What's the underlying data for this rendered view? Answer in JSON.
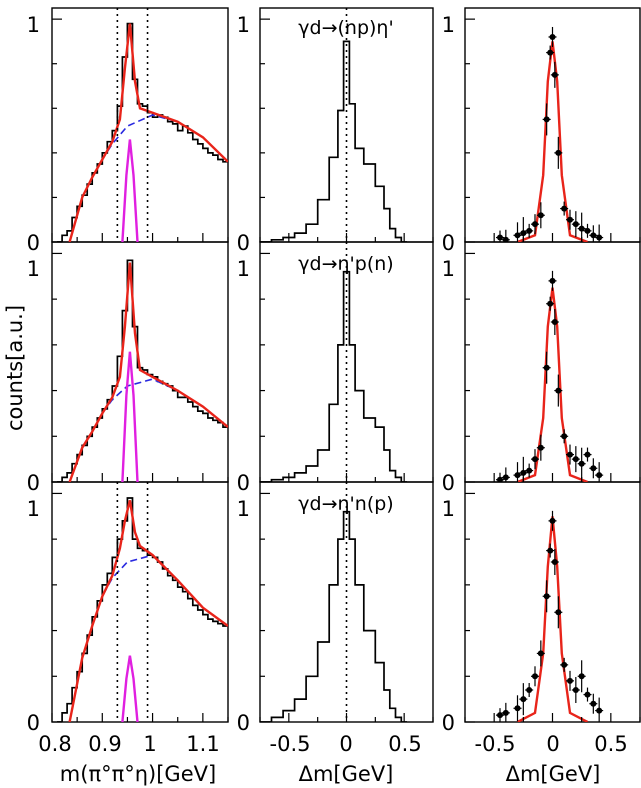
{
  "figure": {
    "ylabel": "counts[a.u.]",
    "col_xlabels": [
      "m(π°π°η)[GeV]",
      "Δm[GeV]",
      "Δm[GeV]"
    ],
    "col_titles": [
      "γd→(np)η'",
      "γd→η'p(n)",
      "γd→η'n(p)"
    ],
    "ytick_labels": [
      "0",
      "1"
    ],
    "xticks_left": [
      "0.8",
      "0.9",
      "1",
      "1.1"
    ],
    "xticks_mid": [
      "-0.5",
      "0",
      "0.5"
    ],
    "xticks_right": [
      "-0.5",
      "0",
      "0.5"
    ],
    "colors": {
      "fit": "#e8241a",
      "signal": "#e020e0",
      "background": "#2a2ae0",
      "histogram": "#000000"
    }
  },
  "chart_data": [
    {
      "row": 0,
      "column": "left",
      "type": "line",
      "xlim": [
        0.8,
        1.15
      ],
      "ylim": [
        0,
        1.05
      ],
      "markers_x": [
        0.93,
        0.99
      ],
      "hist": {
        "x": [
          0.815,
          0.825,
          0.835,
          0.845,
          0.855,
          0.865,
          0.875,
          0.885,
          0.895,
          0.905,
          0.915,
          0.925,
          0.935,
          0.945,
          0.955,
          0.965,
          0.975,
          0.985,
          0.995,
          1.005,
          1.015,
          1.025,
          1.035,
          1.045,
          1.055,
          1.065,
          1.075,
          1.085,
          1.095,
          1.105,
          1.115,
          1.125,
          1.135,
          1.145
        ],
        "y": [
          0.0,
          0.03,
          0.05,
          0.11,
          0.16,
          0.21,
          0.26,
          0.31,
          0.35,
          0.4,
          0.45,
          0.5,
          0.61,
          0.83,
          0.98,
          0.73,
          0.62,
          0.61,
          0.58,
          0.56,
          0.57,
          0.56,
          0.54,
          0.53,
          0.5,
          0.52,
          0.49,
          0.46,
          0.44,
          0.42,
          0.4,
          0.39,
          0.37,
          0.36
        ]
      },
      "fit": {
        "x": [
          0.835,
          0.86,
          0.88,
          0.9,
          0.92,
          0.935,
          0.945,
          0.955,
          0.965,
          0.975,
          1.0,
          1.05,
          1.1,
          1.15
        ],
        "y": [
          0.0,
          0.2,
          0.29,
          0.37,
          0.45,
          0.55,
          0.78,
          0.98,
          0.72,
          0.6,
          0.58,
          0.54,
          0.47,
          0.36
        ]
      },
      "background": {
        "x": [
          0.835,
          0.86,
          0.88,
          0.9,
          0.92,
          0.95,
          1.0,
          1.05,
          1.1,
          1.15
        ],
        "y": [
          0.0,
          0.2,
          0.29,
          0.37,
          0.44,
          0.52,
          0.57,
          0.54,
          0.47,
          0.36
        ]
      },
      "signal": {
        "x": [
          0.94,
          0.948,
          0.955,
          0.962,
          0.97
        ],
        "y": [
          0.0,
          0.3,
          0.46,
          0.3,
          0.0
        ]
      }
    },
    {
      "row": 0,
      "column": "middle",
      "type": "line",
      "xlim": [
        -0.75,
        0.75
      ],
      "ylim": [
        0,
        1.05
      ],
      "marker_x": 0,
      "hist": {
        "x": [
          -0.7,
          -0.6,
          -0.5,
          -0.4,
          -0.3,
          -0.2,
          -0.1,
          -0.05,
          0,
          0.05,
          0.1,
          0.2,
          0.3,
          0.35,
          0.4,
          0.45,
          0.5
        ],
        "y": [
          0.0,
          0.01,
          0.02,
          0.04,
          0.08,
          0.19,
          0.38,
          0.59,
          0.9,
          0.62,
          0.42,
          0.35,
          0.25,
          0.15,
          0.06,
          0.02,
          0.0
        ]
      }
    },
    {
      "row": 0,
      "column": "right",
      "type": "scatter",
      "xlim": [
        -0.75,
        0.75
      ],
      "ylim": [
        0,
        1.05
      ],
      "points": {
        "x": [
          -0.45,
          -0.4,
          -0.3,
          -0.25,
          -0.2,
          -0.15,
          -0.1,
          -0.05,
          -0.02,
          0,
          0.02,
          0.05,
          0.1,
          0.15,
          0.2,
          0.25,
          0.3,
          0.35,
          0.4
        ],
        "y": [
          0.02,
          0.01,
          0.03,
          0.04,
          0.05,
          0.08,
          0.12,
          0.55,
          0.85,
          0.92,
          0.75,
          0.4,
          0.15,
          0.1,
          0.08,
          0.06,
          0.05,
          0.03,
          0.02
        ]
      },
      "fit": {
        "x": [
          -0.3,
          -0.15,
          -0.08,
          -0.04,
          0,
          0.04,
          0.08,
          0.15,
          0.3
        ],
        "y": [
          0.0,
          0.03,
          0.3,
          0.72,
          0.9,
          0.72,
          0.3,
          0.03,
          0.0
        ]
      }
    },
    {
      "row": 1,
      "column": "left",
      "type": "line",
      "xlim": [
        0.8,
        1.15
      ],
      "ylim": [
        0,
        1.05
      ],
      "hist": {
        "x": [
          0.815,
          0.825,
          0.835,
          0.845,
          0.855,
          0.865,
          0.875,
          0.885,
          0.895,
          0.905,
          0.915,
          0.925,
          0.935,
          0.945,
          0.955,
          0.965,
          0.975,
          0.985,
          0.995,
          1.005,
          1.015,
          1.025,
          1.035,
          1.045,
          1.055,
          1.065,
          1.075,
          1.085,
          1.095,
          1.105,
          1.115,
          1.125,
          1.135,
          1.145
        ],
        "y": [
          0.0,
          0.02,
          0.04,
          0.08,
          0.12,
          0.16,
          0.2,
          0.24,
          0.28,
          0.32,
          0.36,
          0.42,
          0.55,
          0.75,
          0.97,
          0.68,
          0.5,
          0.49,
          0.47,
          0.46,
          0.44,
          0.43,
          0.42,
          0.4,
          0.37,
          0.37,
          0.35,
          0.33,
          0.31,
          0.3,
          0.28,
          0.27,
          0.26,
          0.24
        ]
      },
      "fit": {
        "x": [
          0.835,
          0.86,
          0.88,
          0.9,
          0.92,
          0.935,
          0.945,
          0.955,
          0.965,
          0.975,
          1.0,
          1.05,
          1.1,
          1.15
        ],
        "y": [
          0.0,
          0.15,
          0.22,
          0.3,
          0.37,
          0.46,
          0.68,
          0.96,
          0.65,
          0.49,
          0.46,
          0.4,
          0.33,
          0.24
        ]
      },
      "background": {
        "x": [
          0.835,
          0.86,
          0.88,
          0.9,
          0.92,
          0.95,
          1.0,
          1.05,
          1.1,
          1.15
        ],
        "y": [
          0.0,
          0.15,
          0.22,
          0.3,
          0.36,
          0.42,
          0.45,
          0.4,
          0.33,
          0.24
        ]
      },
      "signal": {
        "x": [
          0.94,
          0.948,
          0.955,
          0.962,
          0.97
        ],
        "y": [
          0.0,
          0.38,
          0.57,
          0.38,
          0.0
        ]
      }
    },
    {
      "row": 1,
      "column": "middle",
      "type": "line",
      "xlim": [
        -0.75,
        0.75
      ],
      "ylim": [
        0,
        1.05
      ],
      "marker_x": 0,
      "hist": {
        "x": [
          -0.7,
          -0.6,
          -0.5,
          -0.4,
          -0.3,
          -0.2,
          -0.1,
          -0.05,
          0,
          0.05,
          0.1,
          0.2,
          0.3,
          0.35,
          0.4,
          0.45,
          0.5
        ],
        "y": [
          0.0,
          0.01,
          0.02,
          0.04,
          0.07,
          0.14,
          0.34,
          0.6,
          0.92,
          0.6,
          0.4,
          0.28,
          0.24,
          0.14,
          0.05,
          0.02,
          0.0
        ]
      }
    },
    {
      "row": 1,
      "column": "right",
      "type": "scatter",
      "xlim": [
        -0.75,
        0.75
      ],
      "ylim": [
        0,
        1.05
      ],
      "points": {
        "x": [
          -0.45,
          -0.4,
          -0.3,
          -0.25,
          -0.2,
          -0.15,
          -0.1,
          -0.05,
          -0.02,
          0,
          0.02,
          0.05,
          0.1,
          0.15,
          0.2,
          0.25,
          0.3,
          0.35,
          0.4
        ],
        "y": [
          0.01,
          0.02,
          0.03,
          0.04,
          0.05,
          0.1,
          0.15,
          0.5,
          0.78,
          0.88,
          0.7,
          0.4,
          0.2,
          0.12,
          0.1,
          0.08,
          0.12,
          0.06,
          0.03
        ]
      },
      "fit": {
        "x": [
          -0.3,
          -0.15,
          -0.08,
          -0.04,
          0,
          0.04,
          0.08,
          0.15,
          0.3
        ],
        "y": [
          0.0,
          0.03,
          0.28,
          0.68,
          0.85,
          0.68,
          0.28,
          0.03,
          0.0
        ]
      }
    },
    {
      "row": 2,
      "column": "left",
      "type": "line",
      "xlim": [
        0.8,
        1.15
      ],
      "ylim": [
        0,
        1.05
      ],
      "markers_x": [
        0.93,
        0.99
      ],
      "hist": {
        "x": [
          0.815,
          0.825,
          0.835,
          0.845,
          0.855,
          0.865,
          0.875,
          0.885,
          0.895,
          0.905,
          0.915,
          0.925,
          0.935,
          0.945,
          0.955,
          0.965,
          0.975,
          0.985,
          0.995,
          1.005,
          1.015,
          1.025,
          1.035,
          1.045,
          1.055,
          1.065,
          1.075,
          1.085,
          1.095,
          1.105,
          1.115,
          1.125,
          1.135,
          1.145
        ],
        "y": [
          0.0,
          0.04,
          0.08,
          0.15,
          0.22,
          0.3,
          0.38,
          0.46,
          0.53,
          0.6,
          0.65,
          0.72,
          0.8,
          0.88,
          0.98,
          0.8,
          0.76,
          0.75,
          0.73,
          0.72,
          0.7,
          0.67,
          0.64,
          0.62,
          0.59,
          0.57,
          0.54,
          0.51,
          0.49,
          0.47,
          0.45,
          0.44,
          0.43,
          0.42
        ]
      },
      "fit": {
        "x": [
          0.835,
          0.86,
          0.88,
          0.9,
          0.92,
          0.935,
          0.945,
          0.955,
          0.965,
          0.975,
          1.0,
          1.05,
          1.1,
          1.15
        ],
        "y": [
          0.0,
          0.28,
          0.42,
          0.55,
          0.64,
          0.76,
          0.88,
          0.97,
          0.83,
          0.77,
          0.73,
          0.62,
          0.5,
          0.42
        ]
      },
      "background": {
        "x": [
          0.835,
          0.86,
          0.88,
          0.9,
          0.92,
          0.95,
          1.0,
          1.05,
          1.1,
          1.15
        ],
        "y": [
          0.0,
          0.28,
          0.42,
          0.55,
          0.63,
          0.7,
          0.73,
          0.62,
          0.5,
          0.42
        ]
      },
      "signal": {
        "x": [
          0.94,
          0.948,
          0.955,
          0.962,
          0.97
        ],
        "y": [
          0.0,
          0.19,
          0.29,
          0.19,
          0.0
        ]
      }
    },
    {
      "row": 2,
      "column": "middle",
      "type": "line",
      "xlim": [
        -0.75,
        0.75
      ],
      "ylim": [
        0,
        1.05
      ],
      "marker_x": 0,
      "hist": {
        "x": [
          -0.7,
          -0.6,
          -0.5,
          -0.4,
          -0.3,
          -0.2,
          -0.1,
          -0.05,
          0,
          0.05,
          0.1,
          0.2,
          0.3,
          0.35,
          0.4,
          0.45,
          0.5
        ],
        "y": [
          0.0,
          0.02,
          0.05,
          0.1,
          0.2,
          0.35,
          0.6,
          0.8,
          0.92,
          0.8,
          0.6,
          0.4,
          0.26,
          0.14,
          0.06,
          0.02,
          0.0
        ]
      }
    },
    {
      "row": 2,
      "column": "right",
      "type": "scatter",
      "xlim": [
        -0.75,
        0.75
      ],
      "ylim": [
        0,
        1.05
      ],
      "points": {
        "x": [
          -0.45,
          -0.4,
          -0.3,
          -0.25,
          -0.2,
          -0.15,
          -0.1,
          -0.05,
          -0.02,
          0,
          0.02,
          0.05,
          0.1,
          0.15,
          0.2,
          0.25,
          0.3,
          0.35,
          0.4
        ],
        "y": [
          0.03,
          0.04,
          0.06,
          0.1,
          0.14,
          0.2,
          0.3,
          0.55,
          0.75,
          0.88,
          0.7,
          0.48,
          0.25,
          0.18,
          0.14,
          0.2,
          0.12,
          0.08,
          0.05
        ]
      },
      "fit": {
        "x": [
          -0.3,
          -0.15,
          -0.08,
          -0.04,
          0,
          0.04,
          0.08,
          0.15,
          0.3
        ],
        "y": [
          0.0,
          0.04,
          0.3,
          0.68,
          0.9,
          0.68,
          0.3,
          0.04,
          0.0
        ]
      }
    }
  ]
}
